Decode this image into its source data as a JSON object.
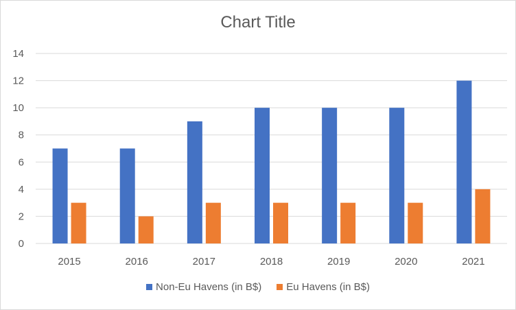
{
  "chart_data": {
    "type": "bar",
    "title": "Chart Title",
    "categories": [
      "2015",
      "2016",
      "2017",
      "2018",
      "2019",
      "2020",
      "2021"
    ],
    "series": [
      {
        "name": "Non-Eu Havens (in B$)",
        "values": [
          7,
          7,
          9,
          10,
          10,
          10,
          12
        ],
        "color": "#4472C4"
      },
      {
        "name": "Eu Havens (in B$)",
        "values": [
          3,
          2,
          3,
          3,
          3,
          3,
          4
        ],
        "color": "#ED7D31"
      }
    ],
    "ylim": [
      0,
      14
    ],
    "yticks": [
      "0",
      "2",
      "4",
      "6",
      "8",
      "10",
      "12",
      "14"
    ],
    "grid": true,
    "legend_position": "bottom"
  }
}
